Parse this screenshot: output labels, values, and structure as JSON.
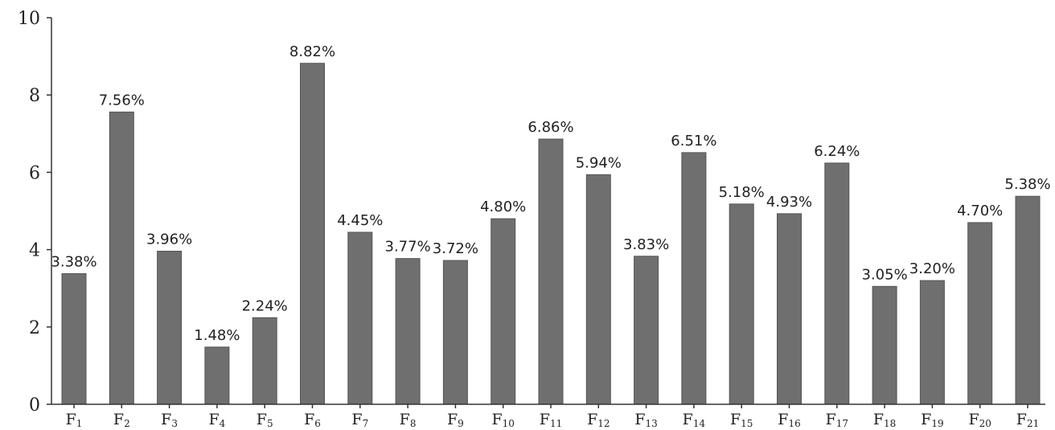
{
  "chart_data": {
    "type": "bar",
    "title": "",
    "xlabel": "",
    "ylabel": "",
    "ylim": [
      0,
      10
    ],
    "yticks": [
      0,
      2,
      4,
      6,
      8,
      10
    ],
    "grid": false,
    "legend": "none",
    "bar_color": "#6f6f6f",
    "categories": [
      {
        "base": "F",
        "sub": "1"
      },
      {
        "base": "F",
        "sub": "2"
      },
      {
        "base": "F",
        "sub": "3"
      },
      {
        "base": "F",
        "sub": "4"
      },
      {
        "base": "F",
        "sub": "5"
      },
      {
        "base": "F",
        "sub": "6"
      },
      {
        "base": "F",
        "sub": "7"
      },
      {
        "base": "F",
        "sub": "8"
      },
      {
        "base": "F",
        "sub": "9"
      },
      {
        "base": "F",
        "sub": "10"
      },
      {
        "base": "F",
        "sub": "11"
      },
      {
        "base": "F",
        "sub": "12"
      },
      {
        "base": "F",
        "sub": "13"
      },
      {
        "base": "F",
        "sub": "14"
      },
      {
        "base": "F",
        "sub": "15"
      },
      {
        "base": "F",
        "sub": "16"
      },
      {
        "base": "F",
        "sub": "17"
      },
      {
        "base": "F",
        "sub": "18"
      },
      {
        "base": "F",
        "sub": "19"
      },
      {
        "base": "F",
        "sub": "20"
      },
      {
        "base": "F",
        "sub": "21"
      }
    ],
    "values": [
      3.38,
      7.56,
      3.96,
      1.48,
      2.24,
      8.82,
      4.45,
      3.77,
      3.72,
      4.8,
      6.86,
      5.94,
      3.83,
      6.51,
      5.18,
      4.93,
      6.24,
      3.05,
      3.2,
      4.7,
      5.38
    ],
    "data_labels": [
      "3.38%",
      "7.56%",
      "3.96%",
      "1.48%",
      "2.24%",
      "8.82%",
      "4.45%",
      "3.77%",
      "3.72%",
      "4.80%",
      "6.86%",
      "5.94%",
      "3.83%",
      "6.51%",
      "5.18%",
      "4.93%",
      "6.24%",
      "3.05%",
      "3.20%",
      "4.70%",
      "5.38%"
    ]
  }
}
